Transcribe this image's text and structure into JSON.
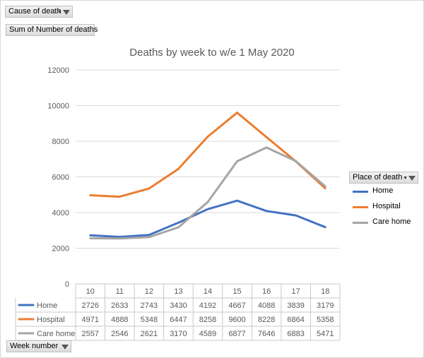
{
  "filters": {
    "cause_of_death": "Cause of death",
    "sum_field": "Sum of Number of deaths",
    "place_of_death": "Place of death",
    "week_number": "Week number"
  },
  "colors": {
    "Home": "#4472c4",
    "Hospital": "#ed7d31",
    "Care home": "#a5a5a5",
    "gridline": "#d9d9d9",
    "text": "#595959"
  },
  "chart_data": {
    "type": "line",
    "title": "Deaths by week to w/e 1 May 2020",
    "categories": [
      "10",
      "11",
      "12",
      "13",
      "14",
      "15",
      "16",
      "17",
      "18"
    ],
    "ylim": [
      0,
      12000
    ],
    "yticks": [
      "0",
      "2000",
      "4000",
      "6000",
      "8000",
      "10000",
      "12000"
    ],
    "grid": true,
    "legend_position": "right",
    "series": [
      {
        "name": "Home",
        "values": [
          2726,
          2633,
          2743,
          3430,
          4192,
          4667,
          4088,
          3839,
          3179
        ]
      },
      {
        "name": "Hospital",
        "values": [
          4971,
          4888,
          5348,
          6447,
          8258,
          9600,
          8228,
          6864,
          5358
        ]
      },
      {
        "name": "Care home",
        "values": [
          2557,
          2546,
          2621,
          3170,
          4589,
          6877,
          7646,
          6883,
          5471
        ]
      }
    ]
  }
}
